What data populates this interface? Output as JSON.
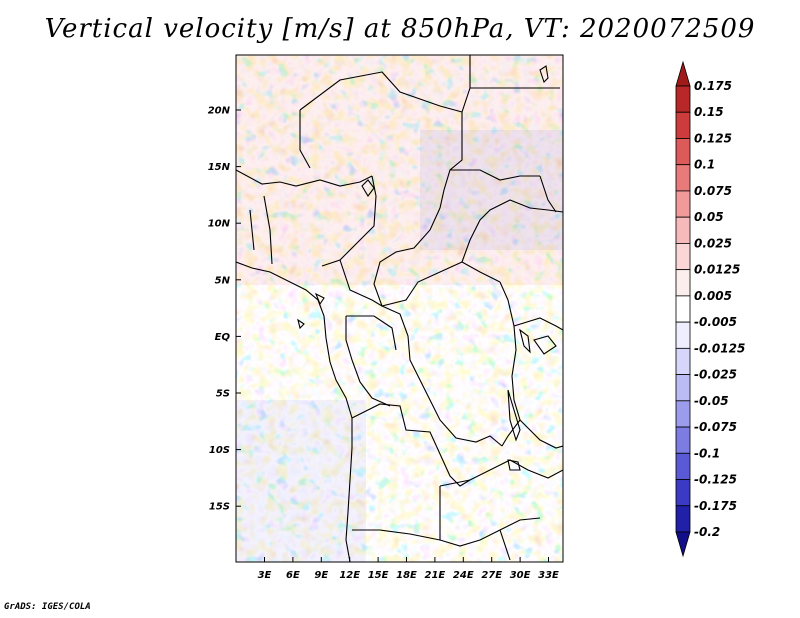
{
  "title": "Vertical velocity [m/s] at 850hPa, VT: 2020072509",
  "footer": "GrADS: IGES/COLA",
  "map": {
    "lat_labels": [
      "20N",
      "15N",
      "10N",
      "5N",
      "EQ",
      "5S",
      "10S",
      "15S"
    ],
    "lon_labels": [
      "3E",
      "6E",
      "9E",
      "12E",
      "15E",
      "18E",
      "21E",
      "24E",
      "27E",
      "30E",
      "33E"
    ]
  },
  "colorbar": {
    "labels": [
      "0.175",
      "0.15",
      "0.125",
      "0.1",
      "0.075",
      "0.05",
      "0.025",
      "0.0125",
      "0.005",
      "-0.005",
      "-0.0125",
      "-0.025",
      "-0.05",
      "-0.075",
      "-0.1",
      "-0.125",
      "-0.175",
      "-0.2"
    ],
    "colors": [
      "#a01a1a",
      "#b82828",
      "#cc3c3c",
      "#dc5a5a",
      "#e87a7a",
      "#f09a9a",
      "#f6baba",
      "#fad6d6",
      "#fdeeee",
      "#ffffff",
      "#eeeeff",
      "#d6d6fa",
      "#bcbcf4",
      "#9c9cec",
      "#7c7ce2",
      "#5a5ad6",
      "#3a3ac6",
      "#2020a8",
      "#120e8a"
    ]
  }
}
